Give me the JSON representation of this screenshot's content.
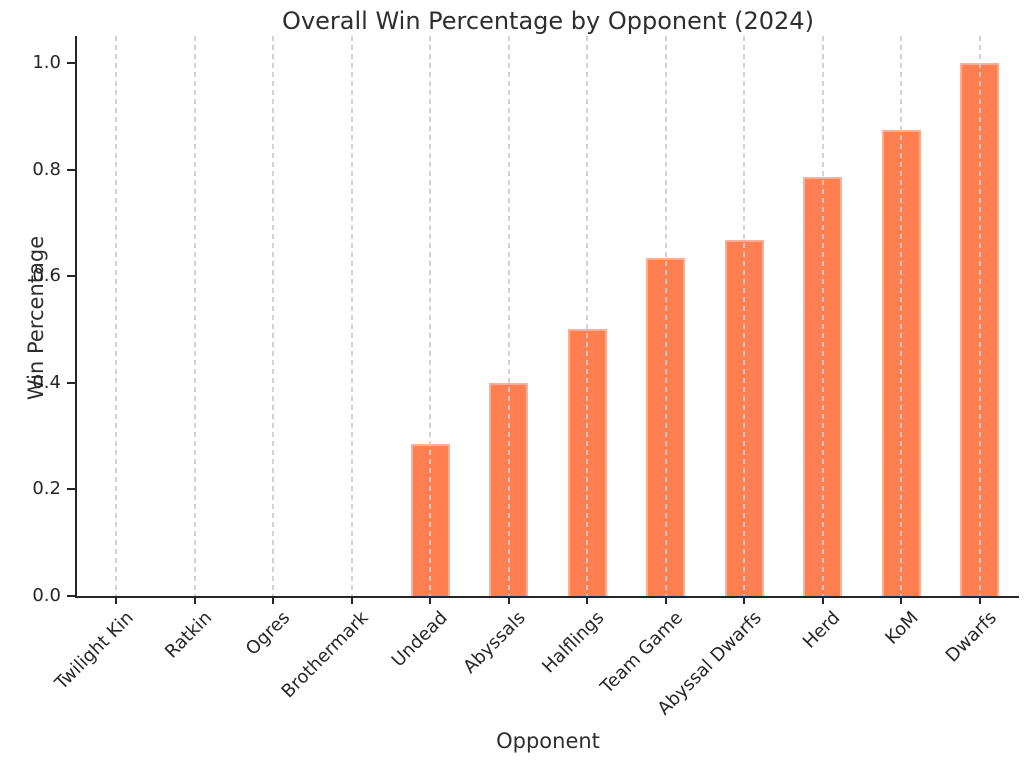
{
  "chart_data": {
    "type": "bar",
    "title": "Overall Win Percentage by Opponent (2024)",
    "xlabel": "Opponent",
    "ylabel": "Win Percentage",
    "categories": [
      "Twilight Kin",
      "Ratkin",
      "Ogres",
      "Brothermark",
      "Undead",
      "Abyssals",
      "Halflings",
      "Team Game",
      "Abyssal Dwarfs",
      "Herd",
      "KoM",
      "Dwarfs"
    ],
    "values": [
      0.0,
      0.0,
      0.0,
      0.0,
      0.286,
      0.4,
      0.5,
      0.635,
      0.667,
      0.786,
      0.875,
      1.0
    ],
    "ylim": [
      0,
      1.05
    ],
    "ytick_labels": [
      "0.0",
      "0.2",
      "0.4",
      "0.6",
      "0.8",
      "1.0"
    ],
    "ytick_values": [
      0,
      0.2,
      0.4,
      0.6,
      0.8,
      1.0
    ],
    "grid": "vertical-dashed-over-bars",
    "legend": "none",
    "colors": {
      "bar_fill": "#FF7F50",
      "bar_edge": "#FFAD94",
      "gridline": "#CDCDCD",
      "spine": "#262626",
      "text": "#2E2E2E"
    }
  }
}
